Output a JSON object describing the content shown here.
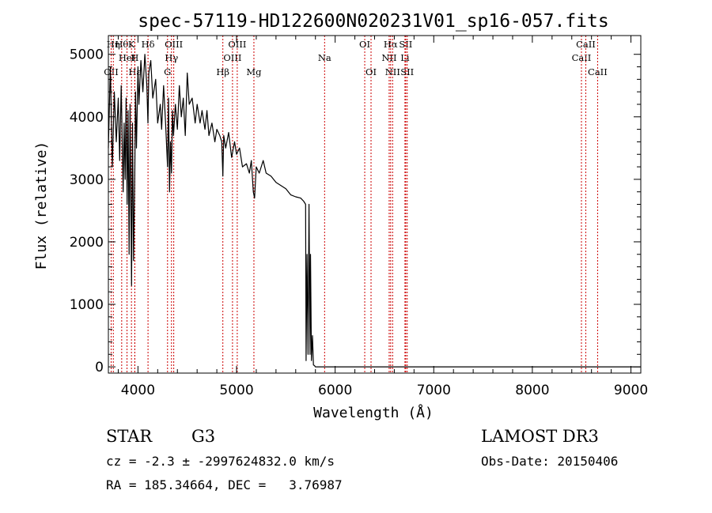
{
  "chart_data": {
    "type": "line",
    "title": "spec-57119-HD122600N020231V01_sp16-057.fits",
    "xlabel": "Wavelength (Å)",
    "ylabel": "Flux (relative)",
    "xlim": [
      3700,
      9100
    ],
    "ylim": [
      -100,
      5300
    ],
    "xticks": [
      4000,
      5000,
      6000,
      7000,
      8000,
      9000
    ],
    "xtick_labels": [
      "4000",
      "5000",
      "6000",
      "7000",
      "8000",
      "9000"
    ],
    "yticks": [
      0,
      1000,
      2000,
      3000,
      4000,
      5000
    ],
    "ytick_labels": [
      "0",
      "1000",
      "2000",
      "3000",
      "4000",
      "5000"
    ],
    "series": [
      {
        "name": "spectrum",
        "x": [
          3700,
          3720,
          3740,
          3760,
          3780,
          3800,
          3815,
          3830,
          3850,
          3860,
          3870,
          3880,
          3890,
          3900,
          3910,
          3920,
          3935,
          3945,
          3955,
          3968,
          3975,
          3985,
          4000,
          4010,
          4030,
          4050,
          4070,
          4090,
          4101,
          4110,
          4130,
          4150,
          4180,
          4200,
          4226,
          4240,
          4260,
          4280,
          4300,
          4310,
          4320,
          4330,
          4340,
          4350,
          4360,
          4380,
          4400,
          4420,
          4440,
          4460,
          4480,
          4500,
          4520,
          4550,
          4580,
          4600,
          4630,
          4650,
          4680,
          4700,
          4720,
          4750,
          4780,
          4800,
          4830,
          4850,
          4861,
          4870,
          4890,
          4920,
          4950,
          4980,
          5000,
          5030,
          5060,
          5100,
          5130,
          5150,
          5170,
          5183,
          5200,
          5230,
          5270,
          5300,
          5350,
          5400,
          5450,
          5500,
          5550,
          5600,
          5650,
          5680,
          5700,
          5705,
          5715,
          5725,
          5735,
          5745,
          5750,
          5760,
          5770,
          5780,
          5790,
          5800,
          5850,
          5900,
          6000,
          6200,
          6500,
          7000,
          7500,
          8000,
          8500,
          9000,
          9100
        ],
        "y": [
          3500,
          4800,
          3200,
          4400,
          3600,
          4300,
          3300,
          4500,
          2800,
          3900,
          3000,
          4300,
          2600,
          4100,
          1800,
          4200,
          1300,
          3900,
          1700,
          3100,
          4400,
          3500,
          4800,
          4200,
          4900,
          4400,
          5000,
          4500,
          3900,
          4700,
          4900,
          4300,
          4600,
          3900,
          4200,
          3800,
          4500,
          3900,
          3200,
          4300,
          2800,
          3600,
          3100,
          4100,
          3700,
          4200,
          3800,
          4500,
          4000,
          4300,
          3700,
          4700,
          4200,
          4300,
          3900,
          4200,
          3900,
          4100,
          3800,
          4100,
          3700,
          3900,
          3600,
          3800,
          3700,
          3600,
          3050,
          3700,
          3500,
          3750,
          3350,
          3600,
          3400,
          3500,
          3200,
          3250,
          3100,
          3300,
          2800,
          2700,
          3200,
          3100,
          3300,
          3100,
          3050,
          2950,
          2900,
          2850,
          2750,
          2720,
          2700,
          2650,
          2600,
          100,
          1800,
          200,
          2600,
          200,
          1800,
          100,
          500,
          30,
          20,
          0,
          0,
          0,
          0,
          0,
          0,
          0,
          0,
          0,
          0,
          0,
          0
        ]
      }
    ],
    "line_markers": [
      {
        "wl": 3835,
        "label": "Hθ",
        "row": 0
      },
      {
        "wl": 3728,
        "label": "OII",
        "row": 2
      },
      {
        "wl": 3750,
        "label": "Hη",
        "row": 0
      },
      {
        "wl": 3889,
        "label": "HeI",
        "row": 1
      },
      {
        "wl": 3934,
        "label": "K",
        "row": 0
      },
      {
        "wl": 3968,
        "label": "Hε",
        "row": 2
      },
      {
        "wl": 3968,
        "label": "H",
        "row": 1
      },
      {
        "wl": 4102,
        "label": "Hδ",
        "row": 0
      },
      {
        "wl": 4300,
        "label": "G",
        "row": 2
      },
      {
        "wl": 4340,
        "label": "Hγ",
        "row": 1
      },
      {
        "wl": 4363,
        "label": "OIII",
        "row": 0
      },
      {
        "wl": 4861,
        "label": "Hβ",
        "row": 2
      },
      {
        "wl": 4959,
        "label": "OIII",
        "row": 1
      },
      {
        "wl": 5007,
        "label": "OIII",
        "row": 0
      },
      {
        "wl": 5176,
        "label": "Mg",
        "row": 2
      },
      {
        "wl": 5893,
        "label": "Na",
        "row": 1
      },
      {
        "wl": 6300,
        "label": "OI",
        "row": 0
      },
      {
        "wl": 6364,
        "label": "OI",
        "row": 2
      },
      {
        "wl": 6548,
        "label": "NII",
        "row": 1
      },
      {
        "wl": 6563,
        "label": "Hα",
        "row": 0
      },
      {
        "wl": 6583,
        "label": "NII",
        "row": 2
      },
      {
        "wl": 6708,
        "label": "Li",
        "row": 1
      },
      {
        "wl": 6716,
        "label": "SII",
        "row": 0
      },
      {
        "wl": 6731,
        "label": "SII",
        "row": 2
      },
      {
        "wl": 8498,
        "label": "CaII",
        "row": 1
      },
      {
        "wl": 8542,
        "label": "CaII",
        "row": 0
      },
      {
        "wl": 8662,
        "label": "CaII",
        "row": 2
      }
    ],
    "marker_color": "#cc0000"
  },
  "info": {
    "class": "STAR",
    "subclass": "G3",
    "survey": "LAMOST DR3",
    "cz": "cz = -2.3 ± -2997624832.0 km/s",
    "obs_date": "Obs-Date: 20150406",
    "coords": "RA = 185.34664, DEC =   3.76987"
  }
}
